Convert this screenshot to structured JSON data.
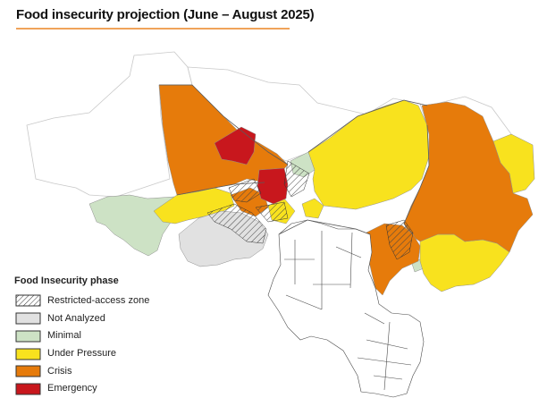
{
  "title": "Food insecurity projection (June – August 2025)",
  "legend": {
    "title": "Food Insecurity phase",
    "items": [
      {
        "key": "restricted",
        "label": "Restricted-access zone",
        "color": "#ffffff",
        "pattern": "hatch"
      },
      {
        "key": "not-analyzed",
        "label": "Not Analyzed",
        "color": "#e1e1e1"
      },
      {
        "key": "minimal",
        "label": "Minimal",
        "color": "#cde2c5"
      },
      {
        "key": "under-pressure",
        "label": "Under Pressure",
        "color": "#f8e21e"
      },
      {
        "key": "crisis",
        "label": "Crisis",
        "color": "#e67b0b"
      },
      {
        "key": "emergency",
        "label": "Emergency",
        "color": "#c8171d"
      }
    ]
  }
}
